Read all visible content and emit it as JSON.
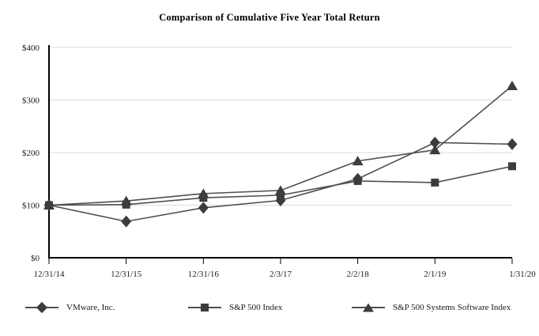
{
  "chart_data": {
    "type": "line",
    "title": "Comparison of Cumulative Five Year Total Return",
    "categories": [
      "12/31/14",
      "12/31/15",
      "12/31/16",
      "2/3/17",
      "2/2/18",
      "2/1/19",
      "1/31/20"
    ],
    "series": [
      {
        "name": "VMware, Inc.",
        "marker": "diamond",
        "values": [
          100,
          69,
          95,
          109,
          150,
          219,
          216
        ]
      },
      {
        "name": "S&P 500 Index",
        "marker": "square",
        "values": [
          100,
          101,
          114,
          119,
          146,
          143,
          174
        ]
      },
      {
        "name": "S&P 500 Systems Software Index",
        "marker": "triangle",
        "values": [
          100,
          108,
          122,
          128,
          184,
          205,
          327
        ]
      }
    ],
    "y_axis": {
      "min": 0,
      "max": 400,
      "ticks": [
        {
          "v": 0,
          "label": "$0"
        },
        {
          "v": 100,
          "label": "$100"
        },
        {
          "v": 200,
          "label": "$200"
        },
        {
          "v": 300,
          "label": "$300"
        },
        {
          "v": 400,
          "label": "$400"
        }
      ],
      "grid": true
    },
    "legend_position": "bottom",
    "colors": {
      "background": "#ffffff",
      "line": "#4f4f4f",
      "marker": "#3c3c3c",
      "gridline": "#dcdcdc",
      "axis": "#000000",
      "text": "#1a1a1a"
    }
  }
}
